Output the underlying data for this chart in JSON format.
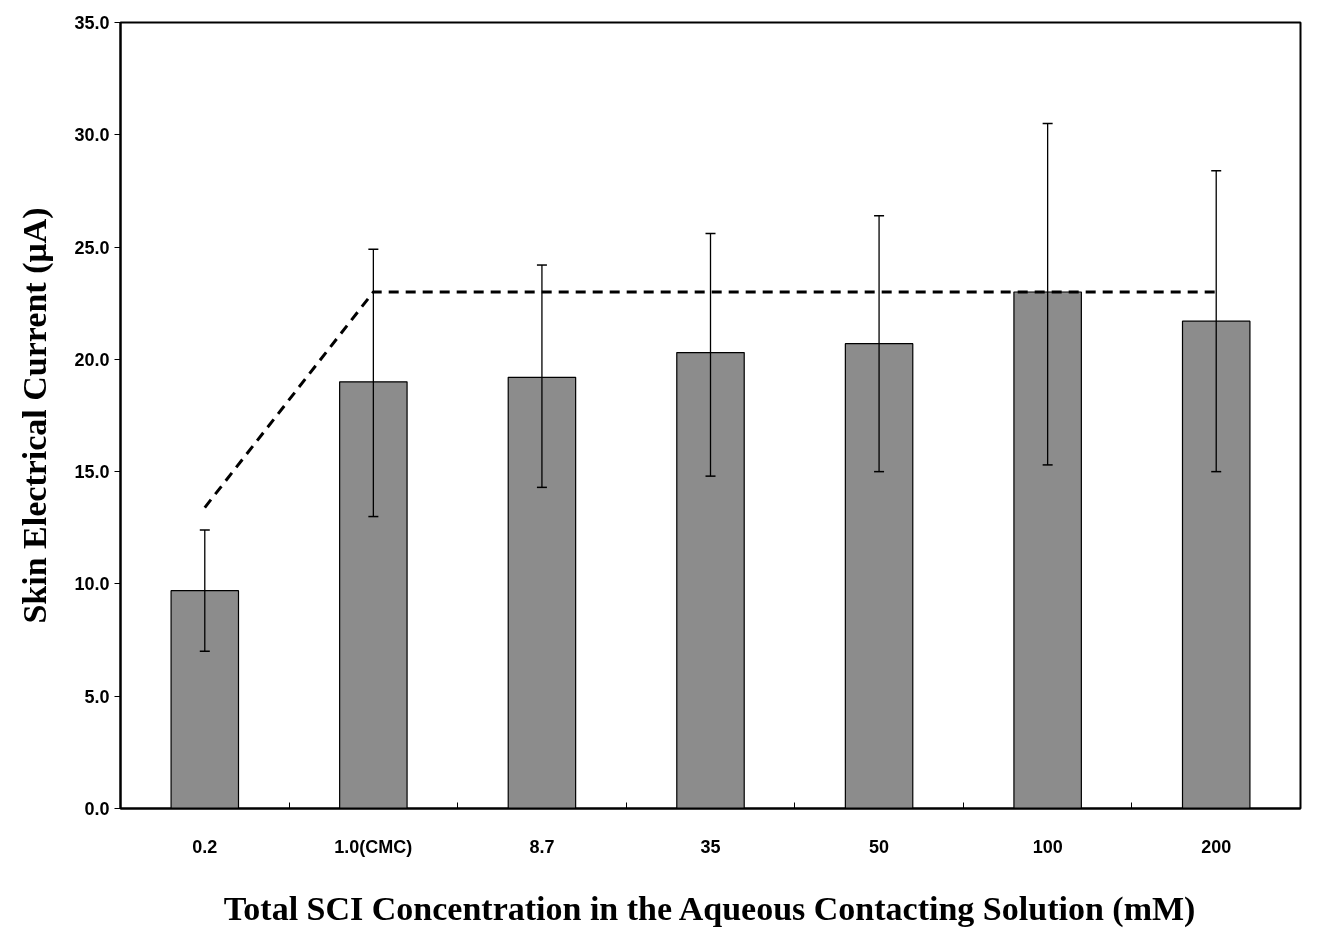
{
  "chart_data": {
    "type": "bar",
    "xlabel": "Total SCI Concentration in the Aqueous Contacting Solution (mM)",
    "ylabel": "Skin Electrical Current (μA)",
    "categories": [
      "0.2",
      "1.0(CMC)",
      "8.7",
      "35",
      "50",
      "100",
      "200"
    ],
    "series": [
      {
        "color": "#8c8c8c",
        "values": [
          9.7,
          19.0,
          19.2,
          20.3,
          20.7,
          23.0,
          21.7
        ],
        "errors": [
          [
            7.0,
            12.4
          ],
          [
            13.0,
            24.9
          ],
          [
            14.3,
            24.2
          ],
          [
            14.8,
            25.6
          ],
          [
            15.0,
            26.4
          ],
          [
            15.3,
            30.5
          ],
          [
            15.0,
            28.4
          ]
        ]
      },
      {
        "type": "line",
        "color": "#000000",
        "line_style": "dashed",
        "values": [
          13.4,
          23.0,
          23.0,
          23.0,
          23.0,
          23.0,
          23.0
        ]
      }
    ],
    "ylim": [
      0,
      35
    ],
    "yticks": [
      {
        "value": 0,
        "label": "0.0"
      },
      {
        "value": 5,
        "label": "5.0"
      },
      {
        "value": 10,
        "label": "10.0"
      },
      {
        "value": 15,
        "label": "15.0"
      },
      {
        "value": 20,
        "label": "20.0"
      },
      {
        "value": 25,
        "label": "25.0"
      },
      {
        "value": 30,
        "label": "30.0"
      },
      {
        "value": 35,
        "label": "35.0"
      }
    ],
    "grid": false
  }
}
